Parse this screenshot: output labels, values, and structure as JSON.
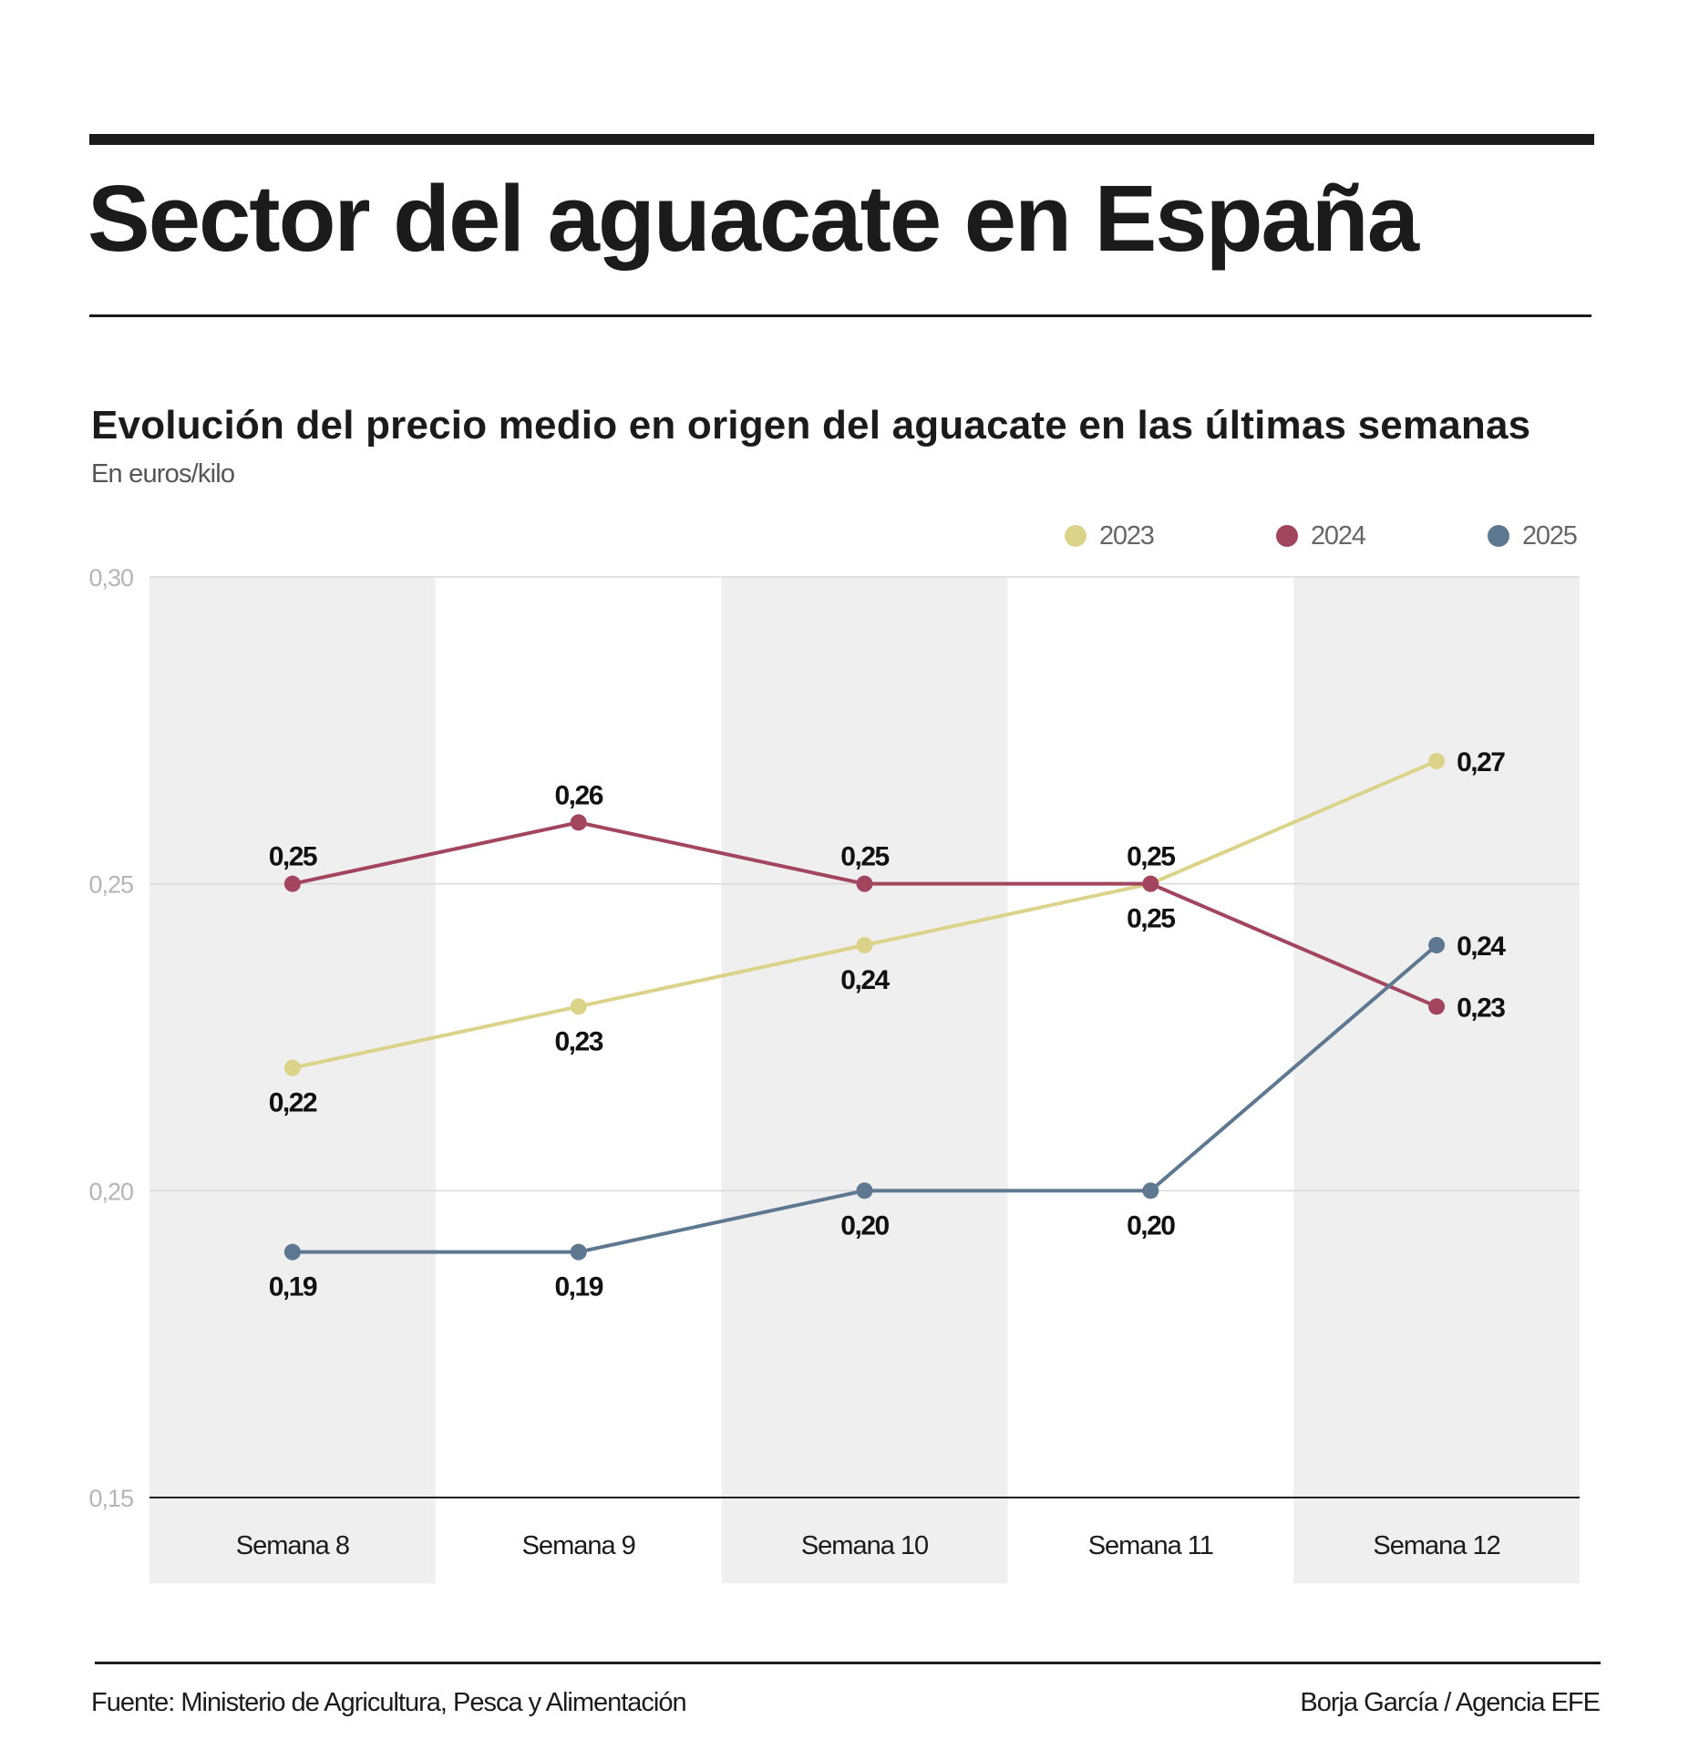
{
  "header": {
    "title": "Sector del aguacate en España"
  },
  "chart_data": {
    "type": "line",
    "title": "Evolución del precio medio en origen del aguacate en las últimas semanas",
    "subtitle": "En euros/kilo",
    "xlabel": "",
    "ylabel": "",
    "categories": [
      "Semana 8",
      "Semana 9",
      "Semana 10",
      "Semana 11",
      "Semana 12"
    ],
    "ylim": [
      0.15,
      0.3
    ],
    "yticks": [
      0.15,
      0.2,
      0.25,
      0.3
    ],
    "ytick_labels": [
      "0,15",
      "0,20",
      "0,25",
      "0,30"
    ],
    "grid": true,
    "legend_position": "top-right",
    "series": [
      {
        "name": "2023",
        "color": "#dcd38a",
        "values": [
          0.22,
          0.23,
          0.24,
          0.25,
          0.27
        ],
        "labels": [
          "0,22",
          "0,23",
          "0,24",
          "0,25",
          "0,27"
        ],
        "label_pos": [
          "below",
          "below",
          "below",
          "below",
          "right"
        ]
      },
      {
        "name": "2024",
        "color": "#a3455f",
        "values": [
          0.25,
          0.26,
          0.25,
          0.25,
          0.23
        ],
        "labels": [
          "0,25",
          "0,26",
          "0,25",
          "0,25",
          "0,23"
        ],
        "label_pos": [
          "above",
          "above",
          "above",
          "above",
          "right"
        ]
      },
      {
        "name": "2025",
        "color": "#5d7890",
        "values": [
          0.19,
          0.19,
          0.2,
          0.2,
          0.24
        ],
        "labels": [
          "0,19",
          "0,19",
          "0,20",
          "0,20",
          "0,24"
        ],
        "label_pos": [
          "below",
          "below",
          "below",
          "below",
          "right"
        ]
      }
    ]
  },
  "footer": {
    "source": "Fuente: Ministerio de Agricultura, Pesca y Alimentación",
    "credit": "Borja García / Agencia EFE"
  }
}
